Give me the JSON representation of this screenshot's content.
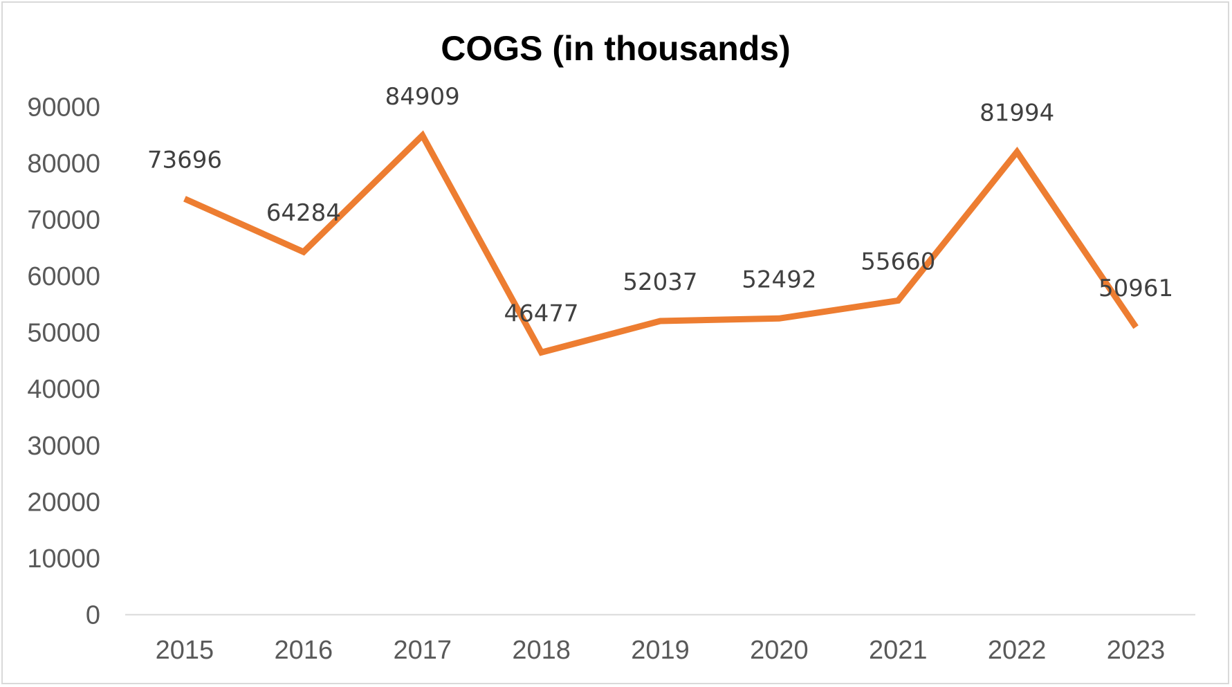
{
  "chart_data": {
    "type": "line",
    "title": "COGS (in thousands)",
    "xlabel": "",
    "ylabel": "",
    "categories": [
      "2015",
      "2016",
      "2017",
      "2018",
      "2019",
      "2020",
      "2021",
      "2022",
      "2023"
    ],
    "series": [
      {
        "values": [
          73696,
          64284,
          84909,
          46477,
          52037,
          52492,
          55660,
          81994,
          50961
        ],
        "color": "#ed7d31"
      }
    ],
    "ylim": [
      0,
      90000
    ],
    "y_ticks": [
      "0",
      "10000",
      "20000",
      "30000",
      "40000",
      "50000",
      "60000",
      "70000",
      "80000",
      "90000"
    ],
    "data_labels": [
      "73696",
      "64284",
      "84909",
      "46477",
      "52037",
      "52492",
      "55660",
      "81994",
      "50961"
    ],
    "grid": false,
    "legend": "none",
    "axis_color": "#d9d9d9",
    "text_color": "#595959"
  }
}
